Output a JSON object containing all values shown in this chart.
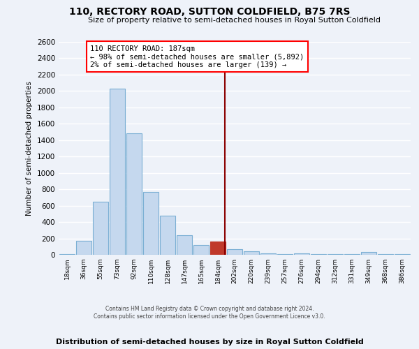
{
  "title": "110, RECTORY ROAD, SUTTON COLDFIELD, B75 7RS",
  "subtitle": "Size of property relative to semi-detached houses in Royal Sutton Coldfield",
  "xlabel_bottom": "Distribution of semi-detached houses by size in Royal Sutton Coldfield",
  "ylabel": "Number of semi-detached properties",
  "footnote": "Contains HM Land Registry data © Crown copyright and database right 2024.\nContains public sector information licensed under the Open Government Licence v3.0.",
  "bar_labels": [
    "18sqm",
    "36sqm",
    "55sqm",
    "73sqm",
    "92sqm",
    "110sqm",
    "128sqm",
    "147sqm",
    "165sqm",
    "184sqm",
    "202sqm",
    "220sqm",
    "239sqm",
    "257sqm",
    "276sqm",
    "294sqm",
    "312sqm",
    "331sqm",
    "349sqm",
    "368sqm",
    "386sqm"
  ],
  "bar_values": [
    10,
    170,
    650,
    2030,
    1480,
    770,
    480,
    235,
    120,
    160,
    65,
    45,
    18,
    5,
    18,
    5,
    5,
    5,
    30,
    5,
    5
  ],
  "bar_color": "#c5d8ee",
  "bar_edge_color": "#7bafd4",
  "highlight_bar_index": 9,
  "highlight_bar_color": "#c0392b",
  "property_line_x": 9.42,
  "annotation_title": "110 RECTORY ROAD: 187sqm",
  "annotation_line1": "← 98% of semi-detached houses are smaller (5,892)",
  "annotation_line2": "2% of semi-detached houses are larger (139) →",
  "ylim": [
    0,
    2600
  ],
  "yticks": [
    0,
    200,
    400,
    600,
    800,
    1000,
    1200,
    1400,
    1600,
    1800,
    2000,
    2200,
    2400,
    2600
  ],
  "bg_color": "#eef2f9",
  "grid_color": "#ffffff"
}
